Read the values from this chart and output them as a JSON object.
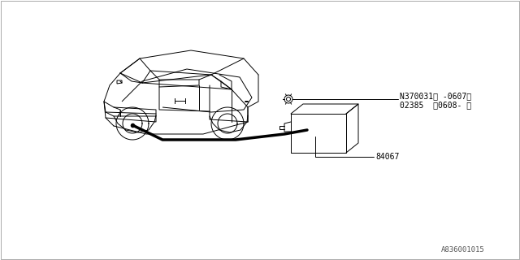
{
  "bg_color": "#ffffff",
  "border_color": "#cccccc",
  "diagram_title": "",
  "watermark": "A836001015",
  "part_label_1": "N370031〈 -0607〉",
  "part_label_1b": "02385  〈0608- 〉",
  "part_label_2": "84067",
  "line_color": "#000000",
  "car_color": "#000000"
}
